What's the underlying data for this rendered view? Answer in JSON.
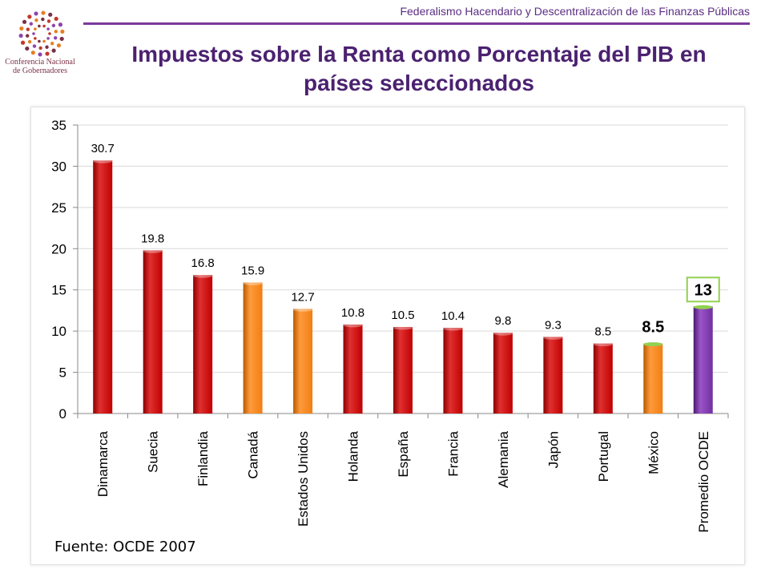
{
  "header": {
    "subtitle": "Federalismo Hacendario y Descentralización de las Finanzas Públicas"
  },
  "logo": {
    "line1": "Conferencia Nacional",
    "line2": "de Gobernadores"
  },
  "slide": {
    "title_line1": "Impuestos sobre la Renta como Porcentaje del PIB en",
    "title_line2": "países seleccionados",
    "source": "Fuente: OCDE 2007"
  },
  "colors": {
    "red": "#c00000",
    "orange": "#f07f12",
    "purple": "#7030a0",
    "accent": "#5b2d82",
    "highlight_border": "#92d050"
  },
  "chart_data": {
    "type": "bar",
    "title": "Impuestos sobre la Renta como Porcentaje del PIB en países seleccionados",
    "xlabel": "",
    "ylabel": "",
    "ylim": [
      0,
      35
    ],
    "yticks": [
      0,
      5,
      10,
      15,
      20,
      25,
      30,
      35
    ],
    "grid": true,
    "categories": [
      "Dinamarca",
      "Suecia",
      "Finlandia",
      "Canadá",
      "Estados Unidos",
      "Holanda",
      "España",
      "Francia",
      "Alemania",
      "Japón",
      "Portugal",
      "México",
      "Promedio OCDE"
    ],
    "values": [
      30.7,
      19.8,
      16.8,
      15.9,
      12.7,
      10.8,
      10.5,
      10.4,
      9.8,
      9.3,
      8.5,
      8.5,
      13
    ],
    "value_labels": [
      "30.7",
      "19.8",
      "16.8",
      "15.9",
      "12.7",
      "10.8",
      "10.5",
      "10.4",
      "9.8",
      "9.3",
      "8.5",
      "8.5",
      "13"
    ],
    "bar_colors": [
      "red",
      "red",
      "red",
      "orange",
      "orange",
      "red",
      "red",
      "red",
      "red",
      "red",
      "red",
      "orange",
      "purple"
    ],
    "highlighted": [
      "México",
      "Promedio OCDE"
    ]
  }
}
